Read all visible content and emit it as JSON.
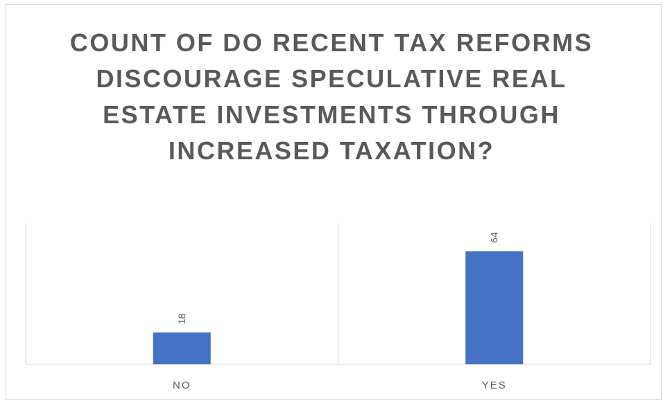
{
  "chart_data": {
    "type": "bar",
    "title": "COUNT OF DO RECENT TAX REFORMS DISCOURAGE SPECULATIVE REAL ESTATE INVESTMENTS THROUGH INCREASED TAXATION?",
    "categories": [
      "NO",
      "YES"
    ],
    "values": [
      18,
      64
    ],
    "xlabel": "",
    "ylabel": "",
    "ylim": [
      0,
      80
    ],
    "grid": false,
    "legend": "none",
    "data_labels": true,
    "bar_color": "#4472C4"
  }
}
